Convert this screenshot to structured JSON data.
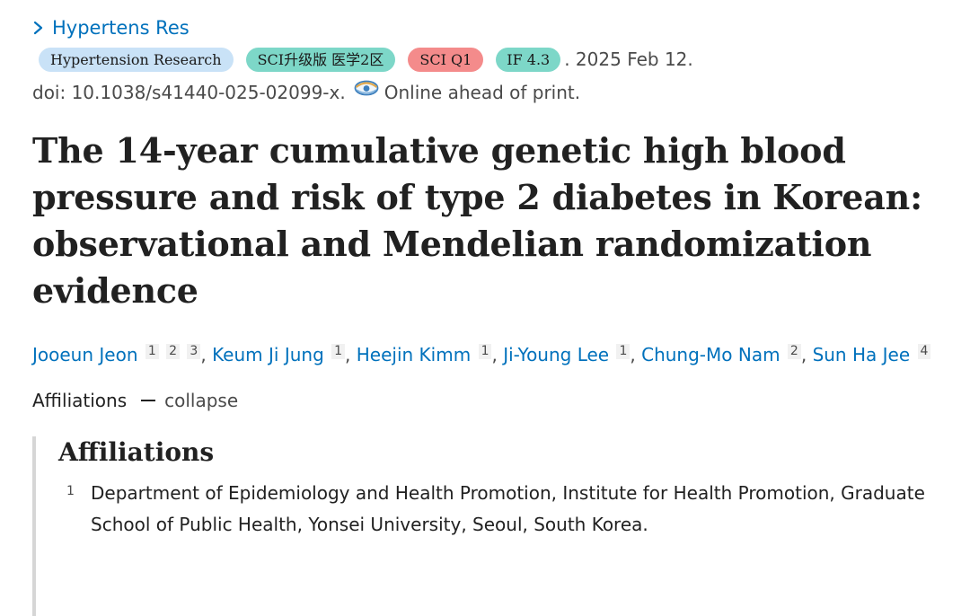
{
  "journal": {
    "link_label": "Hypertens Res"
  },
  "badges": {
    "journal_name": "Hypertension Research",
    "sci_level": "SCI升级版 医学2区",
    "sci_quartile": "SCI Q1",
    "impact_factor": "IF 4.3"
  },
  "publication": {
    "date": ". 2025 Feb 12.",
    "doi": "doi: 10.1038/s41440-025-02099-x.",
    "status": "Online ahead of print."
  },
  "article": {
    "title": "The 14-year cumulative genetic high blood pressure and risk of type 2 diabetes in Korean: observational and Mendelian randomization evidence"
  },
  "authors": [
    {
      "name": "Jooeun Jeon",
      "affiliations": [
        "1",
        "2",
        "3"
      ]
    },
    {
      "name": "Keum Ji Jung",
      "affiliations": [
        "1"
      ]
    },
    {
      "name": "Heejin Kimm",
      "affiliations": [
        "1"
      ]
    },
    {
      "name": "Ji-Young Lee",
      "affiliations": [
        "1"
      ]
    },
    {
      "name": "Chung-Mo Nam",
      "affiliations": [
        "2"
      ]
    },
    {
      "name": "Sun Ha Jee",
      "affiliations": [
        "4"
      ]
    }
  ],
  "affiliations_toggle": {
    "label": "Affiliations",
    "action": "collapse"
  },
  "affiliations_panel": {
    "heading": "Affiliations",
    "items": [
      {
        "number": "1",
        "text": "Department of Epidemiology and Health Promotion, Institute for Health Promotion, Graduate School of Public Health, Yonsei University, Seoul, South Korea."
      }
    ]
  },
  "icons": {
    "journal_chevron": "chevron-right-icon",
    "citation": "citation-eye-icon"
  },
  "colors": {
    "link": "#0071bc",
    "badge_journal": "#c9e2f7",
    "badge_sci_level": "#7dd7c8",
    "badge_sci_quartile": "#f48b8b",
    "badge_impact": "#7dd7c8"
  }
}
